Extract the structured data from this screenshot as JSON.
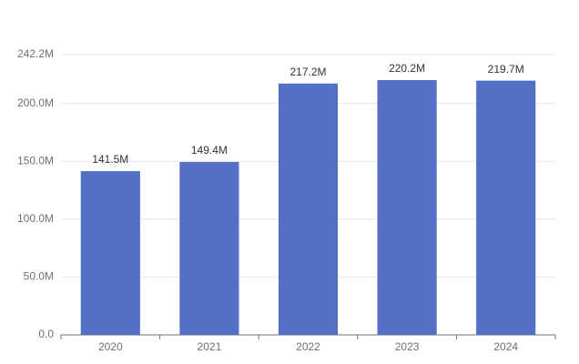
{
  "chart_data": {
    "type": "bar",
    "categories": [
      "2020",
      "2021",
      "2022",
      "2023",
      "2024"
    ],
    "values": [
      141.5,
      149.4,
      217.2,
      220.2,
      219.7
    ],
    "value_labels": [
      "141.5M",
      "149.4M",
      "217.2M",
      "220.2M",
      "219.7M"
    ],
    "color": "#5470c6",
    "ylim": [
      0,
      242.2
    ],
    "yticks": [
      {
        "value": 0,
        "label": "0.0"
      },
      {
        "value": 50,
        "label": "50.0M"
      },
      {
        "value": 100,
        "label": "100.0M"
      },
      {
        "value": 150,
        "label": "150.0M"
      },
      {
        "value": 200,
        "label": "200.0M"
      },
      {
        "value": 242.2,
        "label": "242.2M"
      }
    ],
    "grid": true
  }
}
